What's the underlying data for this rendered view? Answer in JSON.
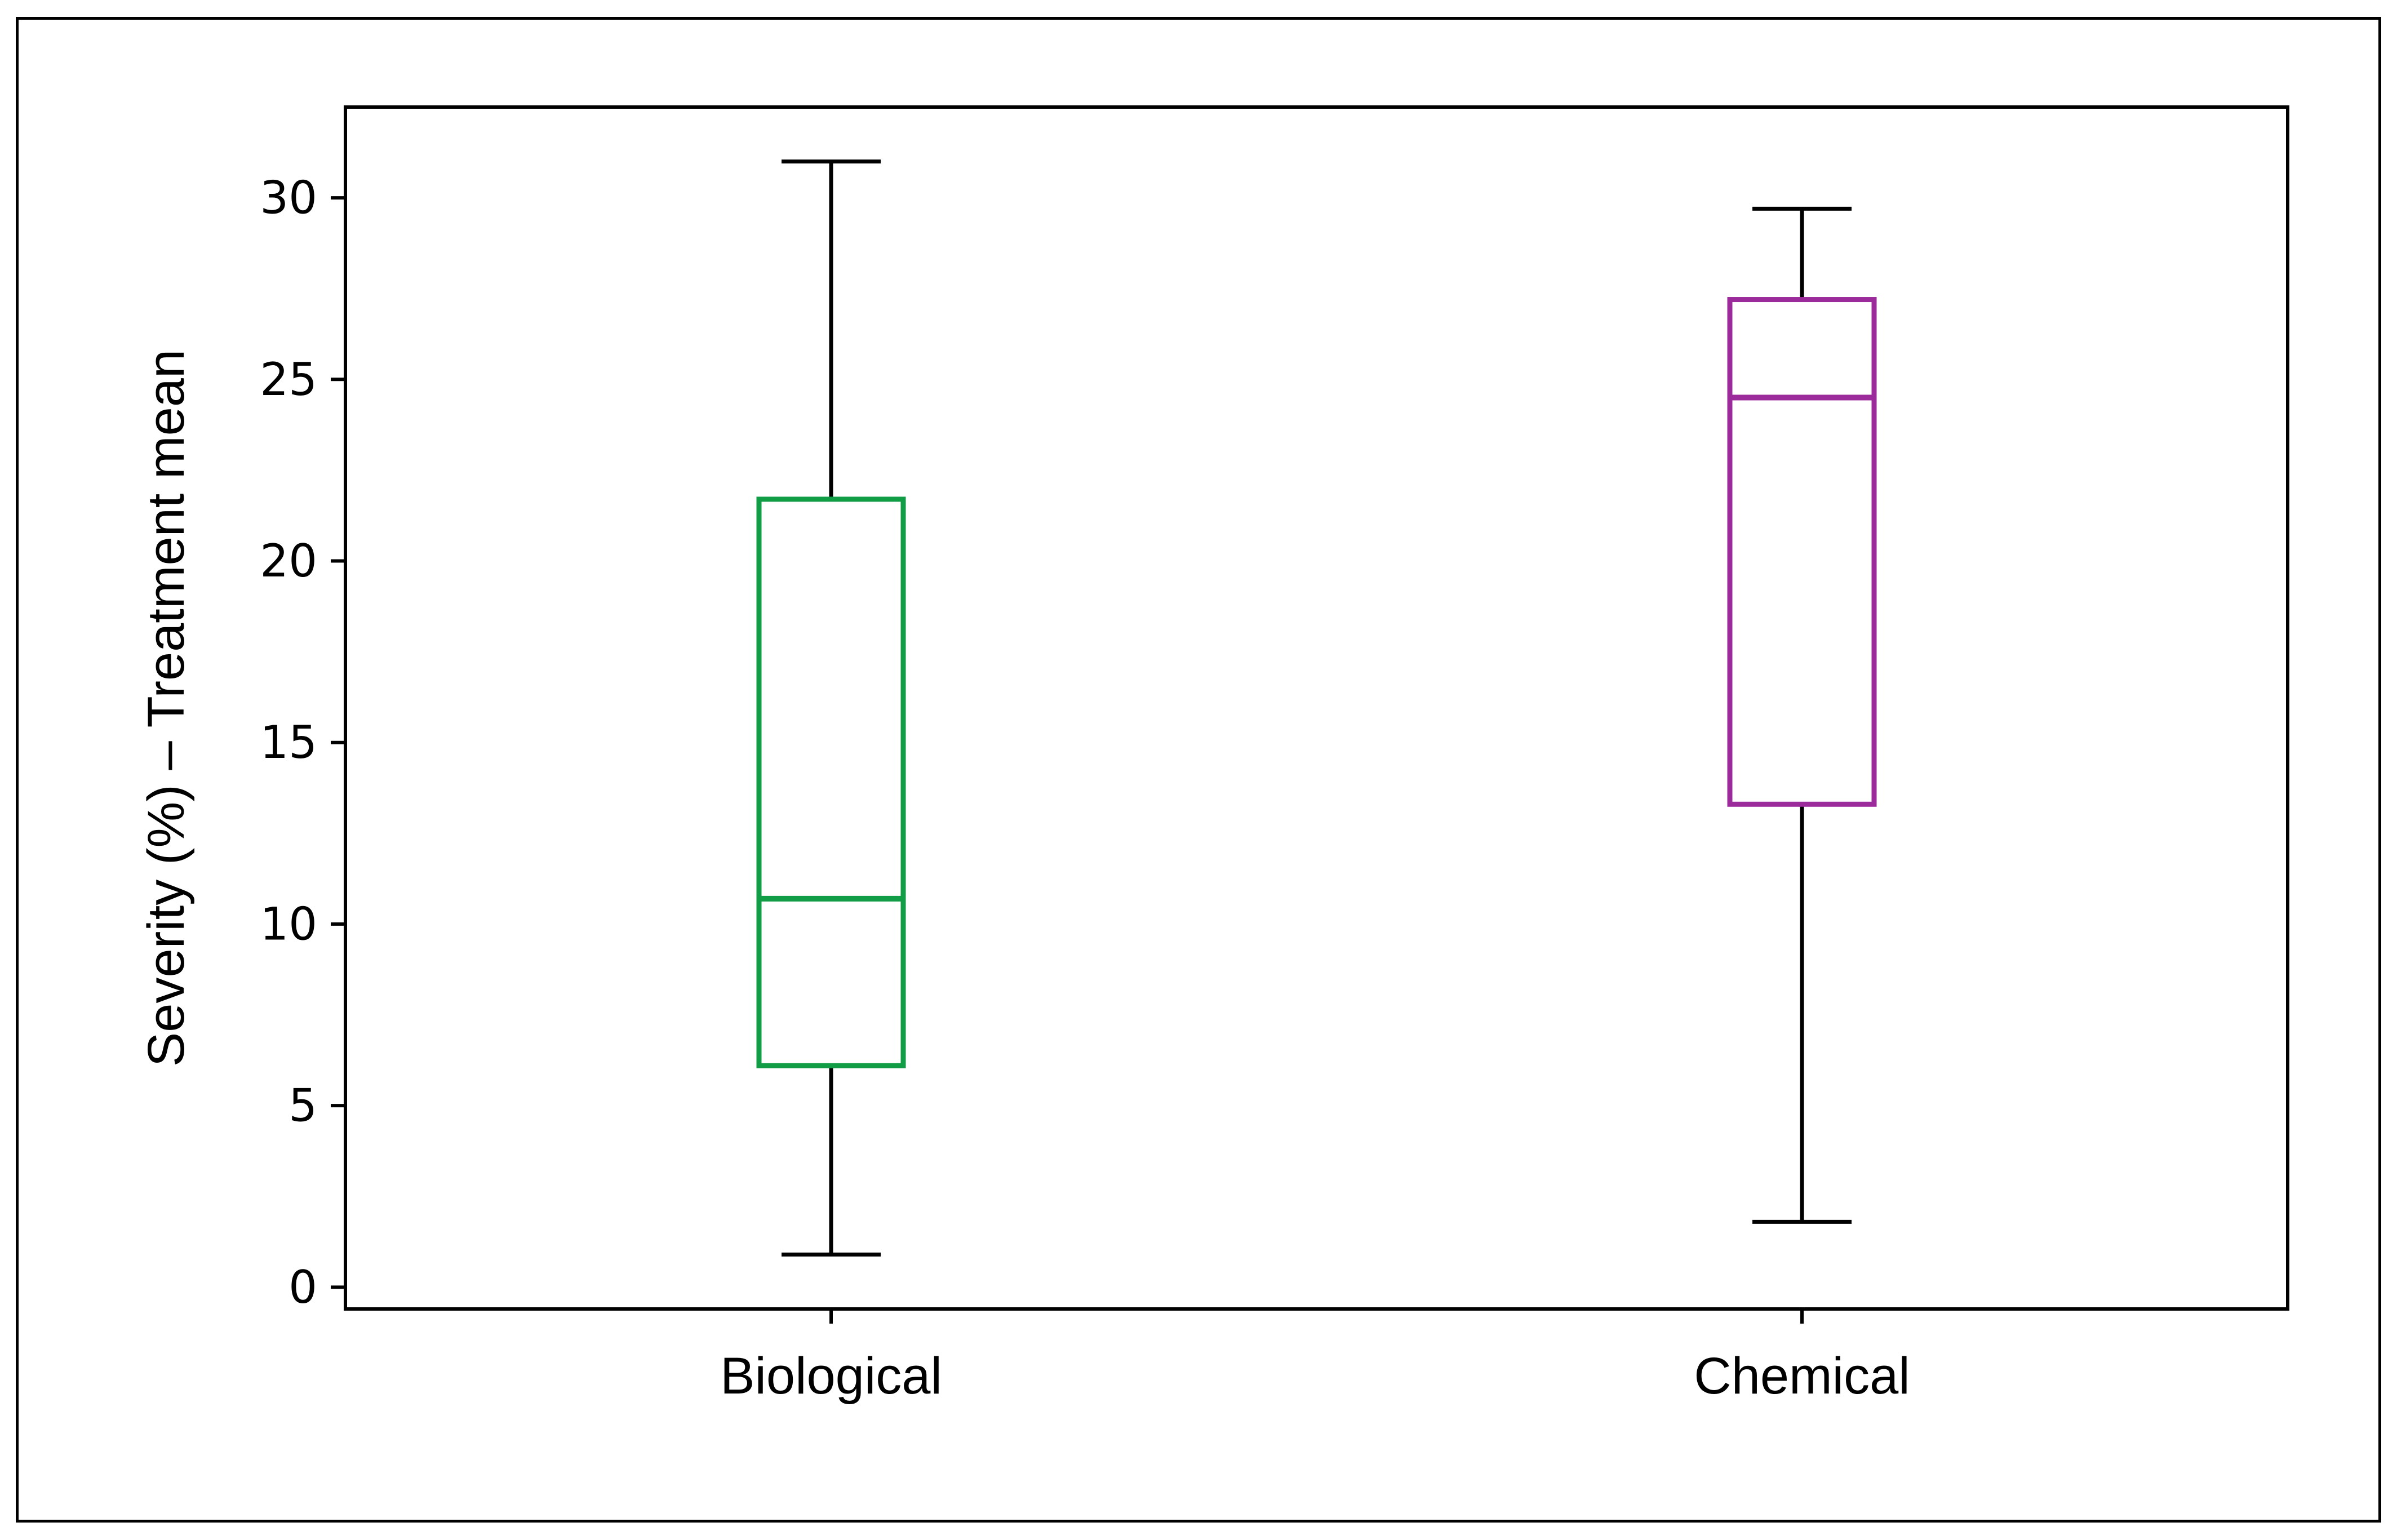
{
  "chart_data": {
    "type": "box",
    "title": "",
    "xlabel": "",
    "ylabel": "Severity (%) – Treatment mean",
    "ylim": [
      -0.6,
      32.5
    ],
    "yticks": [
      0,
      5,
      10,
      15,
      20,
      25,
      30
    ],
    "grid": false,
    "legend": "none",
    "categories": [
      "Biological",
      "Chemical"
    ],
    "boxes": [
      {
        "category": "Biological",
        "whisker_low": 0.9,
        "q1": 6.1,
        "median": 10.7,
        "q3": 21.7,
        "whisker_high": 31.0,
        "color": "#119c46"
      },
      {
        "category": "Chemical",
        "whisker_low": 1.8,
        "q1": 13.3,
        "median": 24.5,
        "q3": 27.2,
        "whisker_high": 29.7,
        "color": "#9b2a9a"
      }
    ],
    "whisker_color": "#000000"
  }
}
